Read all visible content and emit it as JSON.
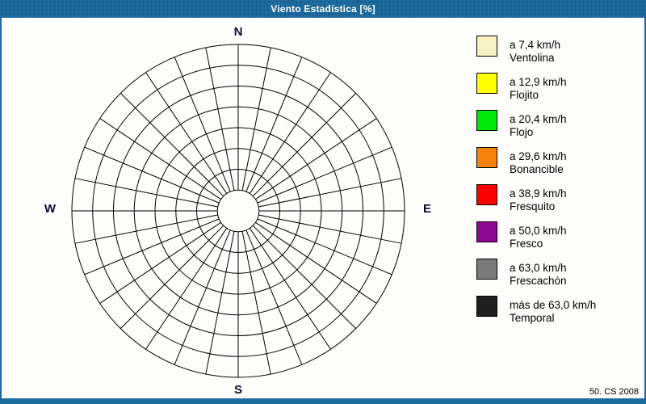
{
  "window": {
    "title": "Viento Estadística [%]",
    "footer": "50. CS 2008"
  },
  "colors": {
    "chrome_blue": "#1D6B9F",
    "grid_line": "#000000",
    "compass_label": "#0D0D2B",
    "background": "#FDFEFB"
  },
  "chart_data": {
    "type": "polar-grid",
    "subtype": "wind-rose",
    "title": "Viento Estadística [%]",
    "units": "%",
    "rings": 8,
    "sectors": 32,
    "outer_radius_px": 206,
    "inner_hole_rings": 1,
    "grid": true,
    "plotted_series": [],
    "note": "empty wind-rose grid, no sector data filled",
    "compass_labels": {
      "n": "N",
      "e": "E",
      "s": "S",
      "w": "W"
    },
    "legend_position": "right",
    "legend": [
      {
        "color": "#F8F2C2",
        "speed_label": "a 7,4 km/h",
        "name": "Ventolina"
      },
      {
        "color": "#FFFF00",
        "speed_label": "a 12,9 km/h",
        "name": "Flojito"
      },
      {
        "color": "#00E80A",
        "speed_label": "a 20,4 km/h",
        "name": "Flojo"
      },
      {
        "color": "#F9820F",
        "speed_label": "a 29,6 km/h",
        "name": "Bonancible"
      },
      {
        "color": "#FE0000",
        "speed_label": "a 38,9 km/h",
        "name": "Fresquito"
      },
      {
        "color": "#8F0890",
        "speed_label": "a 50,0 km/h",
        "name": "Fresco"
      },
      {
        "color": "#7B7B7B",
        "speed_label": "a 63,0 km/h",
        "name": "Frescachón"
      },
      {
        "color": "#1F1F1F",
        "speed_label": "más de 63,0 km/h",
        "name": "Temporal"
      }
    ]
  }
}
